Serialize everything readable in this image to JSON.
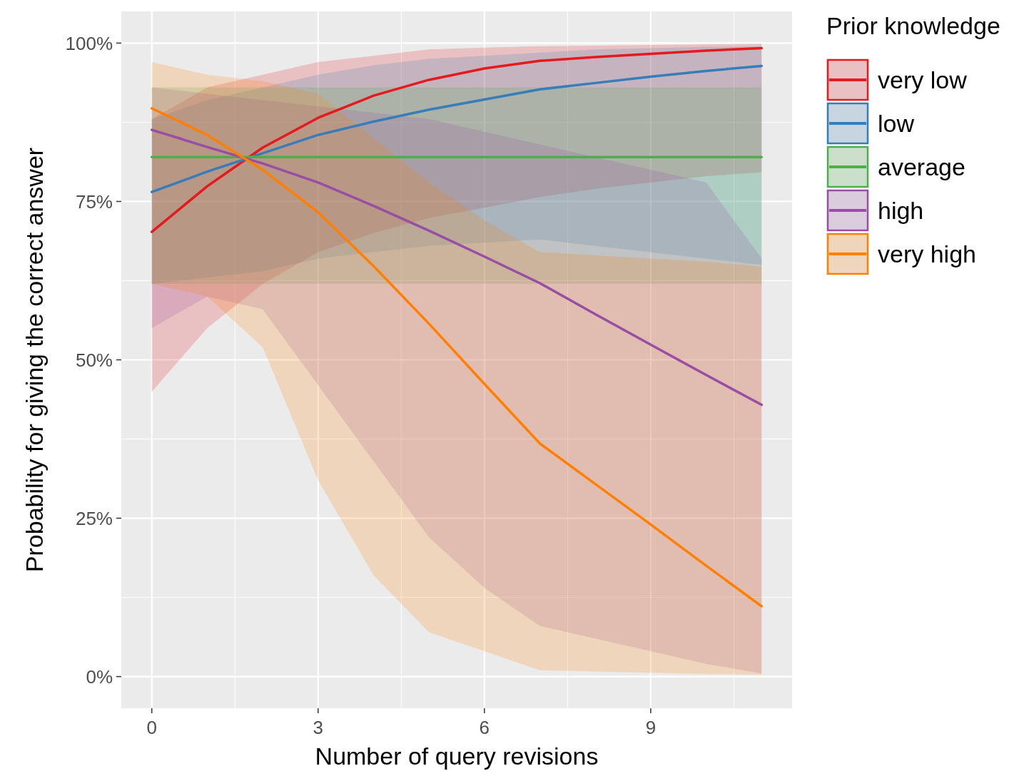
{
  "chart_data": {
    "type": "line",
    "xlabel": "Number of query revisions",
    "ylabel": "Probability for giving the correct answer",
    "legend_title": "Prior knowledge",
    "legend": "right",
    "grid": true,
    "x": [
      0,
      1,
      2,
      3,
      4,
      5,
      6,
      7,
      8,
      9,
      10,
      11
    ],
    "xlim": [
      -0.55,
      11.55
    ],
    "xticks": [
      0,
      3,
      6,
      9
    ],
    "ylim": [
      -5,
      105
    ],
    "yticks": [
      {
        "value": 0,
        "label": "0%"
      },
      {
        "value": 25,
        "label": "25%"
      },
      {
        "value": 50,
        "label": "50%"
      },
      {
        "value": 75,
        "label": "75%"
      },
      {
        "value": 100,
        "label": "100%"
      }
    ],
    "series": [
      {
        "name": "very low",
        "color": "#e41a1c",
        "values": [
          70.2,
          77.4,
          83.5,
          88.2,
          91.7,
          94.2,
          96,
          97.2,
          97.8,
          98.3,
          98.8,
          99.2
        ],
        "lower": [
          45,
          55,
          62,
          67,
          70,
          72.4,
          74,
          75.7,
          77,
          78,
          79,
          79.6
        ],
        "upper": [
          88,
          93,
          95,
          97,
          98,
          99,
          99.3,
          99.5,
          99.6,
          99.7,
          99.8,
          99.9
        ]
      },
      {
        "name": "low",
        "color": "#377eb8",
        "values": [
          76.5,
          79.7,
          82.6,
          85.5,
          87.6,
          89.5,
          91.1,
          92.7,
          93.7,
          94.7,
          95.6,
          96.4
        ],
        "lower": [
          62,
          63,
          64,
          66,
          67,
          68,
          68.5,
          69,
          68,
          67,
          66,
          65
        ],
        "upper": [
          88,
          91,
          93,
          95,
          96.5,
          97.5,
          98,
          98.5,
          99,
          99.2,
          99.4,
          99.5
        ]
      },
      {
        "name": "average",
        "color": "#4daf4a",
        "values": [
          82,
          82,
          82,
          82,
          82,
          82,
          82,
          82,
          82,
          82,
          82,
          82
        ],
        "lower": [
          62,
          62,
          62,
          62,
          62,
          62,
          62,
          62,
          62,
          62,
          62,
          62
        ],
        "upper": [
          93,
          93,
          93,
          93,
          93,
          93,
          93,
          93,
          93,
          93,
          93,
          93
        ]
      },
      {
        "name": "high",
        "color": "#984ea3",
        "values": [
          86.3,
          83.6,
          81,
          78,
          74.3,
          70.4,
          66.3,
          62.1,
          57.2,
          52.4,
          47.6,
          42.9
        ],
        "lower": [
          55,
          60,
          58,
          46,
          34,
          22,
          14,
          8,
          6,
          4,
          2,
          0.5
        ],
        "upper": [
          93,
          92,
          91,
          90,
          89,
          88,
          86,
          84,
          82,
          80,
          78,
          66
        ]
      },
      {
        "name": "very high",
        "color": "#ff7f00",
        "values": [
          89.7,
          85.5,
          80,
          73.3,
          64.8,
          55.7,
          46.2,
          36.8,
          30.4,
          24,
          17.5,
          11.1
        ],
        "lower": [
          62,
          60,
          52,
          31,
          16,
          7,
          4,
          1,
          0.8,
          0.6,
          0.4,
          0.3
        ],
        "upper": [
          97,
          95,
          94,
          92,
          85,
          78,
          72,
          67,
          66.5,
          66,
          65.5,
          64.7
        ]
      }
    ]
  }
}
